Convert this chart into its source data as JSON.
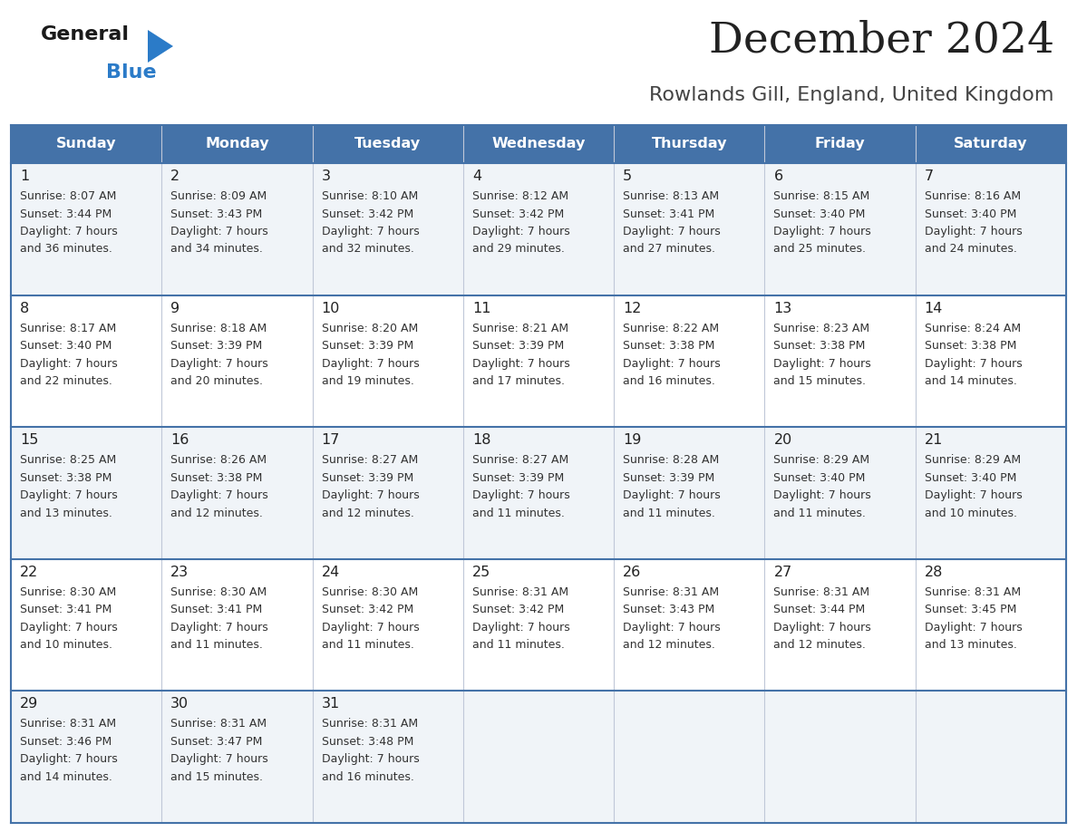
{
  "title": "December 2024",
  "subtitle": "Rowlands Gill, England, United Kingdom",
  "days_of_week": [
    "Sunday",
    "Monday",
    "Tuesday",
    "Wednesday",
    "Thursday",
    "Friday",
    "Saturday"
  ],
  "header_bg": "#4472a8",
  "header_text": "#ffffff",
  "cell_bg_odd": "#f0f4f8",
  "cell_bg_even": "#ffffff",
  "border_color": "#4472a8",
  "inner_border_color": "#c0c8d8",
  "day_num_color": "#222222",
  "cell_text_color": "#333333",
  "title_color": "#222222",
  "subtitle_color": "#444444",
  "logo_black": "#1a1a1a",
  "logo_blue": "#2b7bc8",
  "calendar": [
    [
      {
        "day": 1,
        "sunrise": "8:07 AM",
        "sunset": "3:44 PM",
        "daylight_minutes": 36
      },
      {
        "day": 2,
        "sunrise": "8:09 AM",
        "sunset": "3:43 PM",
        "daylight_minutes": 34
      },
      {
        "day": 3,
        "sunrise": "8:10 AM",
        "sunset": "3:42 PM",
        "daylight_minutes": 32
      },
      {
        "day": 4,
        "sunrise": "8:12 AM",
        "sunset": "3:42 PM",
        "daylight_minutes": 29
      },
      {
        "day": 5,
        "sunrise": "8:13 AM",
        "sunset": "3:41 PM",
        "daylight_minutes": 27
      },
      {
        "day": 6,
        "sunrise": "8:15 AM",
        "sunset": "3:40 PM",
        "daylight_minutes": 25
      },
      {
        "day": 7,
        "sunrise": "8:16 AM",
        "sunset": "3:40 PM",
        "daylight_minutes": 24
      }
    ],
    [
      {
        "day": 8,
        "sunrise": "8:17 AM",
        "sunset": "3:40 PM",
        "daylight_minutes": 22
      },
      {
        "day": 9,
        "sunrise": "8:18 AM",
        "sunset": "3:39 PM",
        "daylight_minutes": 20
      },
      {
        "day": 10,
        "sunrise": "8:20 AM",
        "sunset": "3:39 PM",
        "daylight_minutes": 19
      },
      {
        "day": 11,
        "sunrise": "8:21 AM",
        "sunset": "3:39 PM",
        "daylight_minutes": 17
      },
      {
        "day": 12,
        "sunrise": "8:22 AM",
        "sunset": "3:38 PM",
        "daylight_minutes": 16
      },
      {
        "day": 13,
        "sunrise": "8:23 AM",
        "sunset": "3:38 PM",
        "daylight_minutes": 15
      },
      {
        "day": 14,
        "sunrise": "8:24 AM",
        "sunset": "3:38 PM",
        "daylight_minutes": 14
      }
    ],
    [
      {
        "day": 15,
        "sunrise": "8:25 AM",
        "sunset": "3:38 PM",
        "daylight_minutes": 13
      },
      {
        "day": 16,
        "sunrise": "8:26 AM",
        "sunset": "3:38 PM",
        "daylight_minutes": 12
      },
      {
        "day": 17,
        "sunrise": "8:27 AM",
        "sunset": "3:39 PM",
        "daylight_minutes": 12
      },
      {
        "day": 18,
        "sunrise": "8:27 AM",
        "sunset": "3:39 PM",
        "daylight_minutes": 11
      },
      {
        "day": 19,
        "sunrise": "8:28 AM",
        "sunset": "3:39 PM",
        "daylight_minutes": 11
      },
      {
        "day": 20,
        "sunrise": "8:29 AM",
        "sunset": "3:40 PM",
        "daylight_minutes": 11
      },
      {
        "day": 21,
        "sunrise": "8:29 AM",
        "sunset": "3:40 PM",
        "daylight_minutes": 10
      }
    ],
    [
      {
        "day": 22,
        "sunrise": "8:30 AM",
        "sunset": "3:41 PM",
        "daylight_minutes": 10
      },
      {
        "day": 23,
        "sunrise": "8:30 AM",
        "sunset": "3:41 PM",
        "daylight_minutes": 11
      },
      {
        "day": 24,
        "sunrise": "8:30 AM",
        "sunset": "3:42 PM",
        "daylight_minutes": 11
      },
      {
        "day": 25,
        "sunrise": "8:31 AM",
        "sunset": "3:42 PM",
        "daylight_minutes": 11
      },
      {
        "day": 26,
        "sunrise": "8:31 AM",
        "sunset": "3:43 PM",
        "daylight_minutes": 12
      },
      {
        "day": 27,
        "sunrise": "8:31 AM",
        "sunset": "3:44 PM",
        "daylight_minutes": 12
      },
      {
        "day": 28,
        "sunrise": "8:31 AM",
        "sunset": "3:45 PM",
        "daylight_minutes": 13
      }
    ],
    [
      {
        "day": 29,
        "sunrise": "8:31 AM",
        "sunset": "3:46 PM",
        "daylight_minutes": 14
      },
      {
        "day": 30,
        "sunrise": "8:31 AM",
        "sunset": "3:47 PM",
        "daylight_minutes": 15
      },
      {
        "day": 31,
        "sunrise": "8:31 AM",
        "sunset": "3:48 PM",
        "daylight_minutes": 16
      },
      null,
      null,
      null,
      null
    ]
  ]
}
